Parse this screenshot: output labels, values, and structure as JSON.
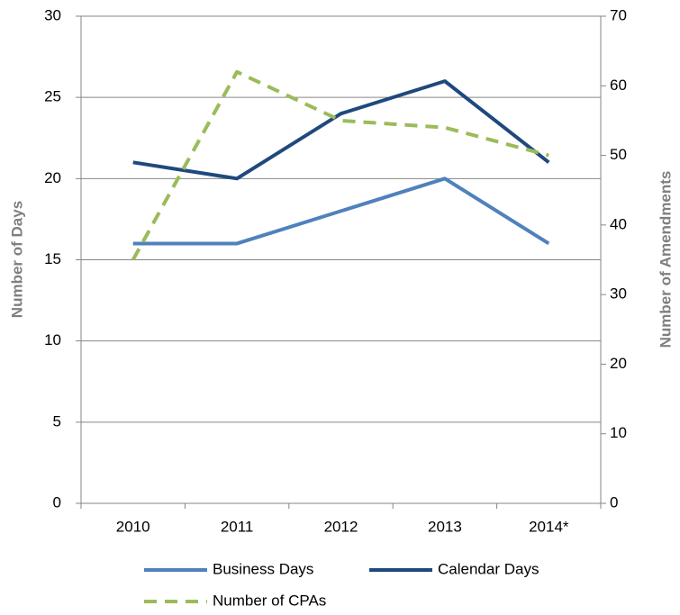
{
  "chart_data": {
    "type": "line",
    "categories": [
      "2010",
      "2011",
      "2012",
      "2013",
      "2014*"
    ],
    "ylabel": "Number of Days",
    "y2label": "Number of Amendments",
    "ylim": [
      0,
      30
    ],
    "yticks": [
      0,
      5,
      10,
      15,
      20,
      25,
      30
    ],
    "y2lim": [
      0,
      70
    ],
    "y2ticks": [
      0,
      10,
      20,
      30,
      40,
      50,
      60,
      70
    ],
    "grid": true,
    "series": [
      {
        "name": "Business Days",
        "color": "#4f81bd",
        "values": [
          16,
          16,
          18,
          20,
          16
        ]
      },
      {
        "name": "Calendar Days",
        "color": "#1f497d",
        "values": [
          21,
          20,
          24,
          26,
          21
        ]
      },
      {
        "name": "Number of CPAs",
        "color": "#9bbb59",
        "dashed": true,
        "axis": "y2",
        "values": [
          35,
          62,
          55,
          54,
          50
        ]
      }
    ]
  }
}
